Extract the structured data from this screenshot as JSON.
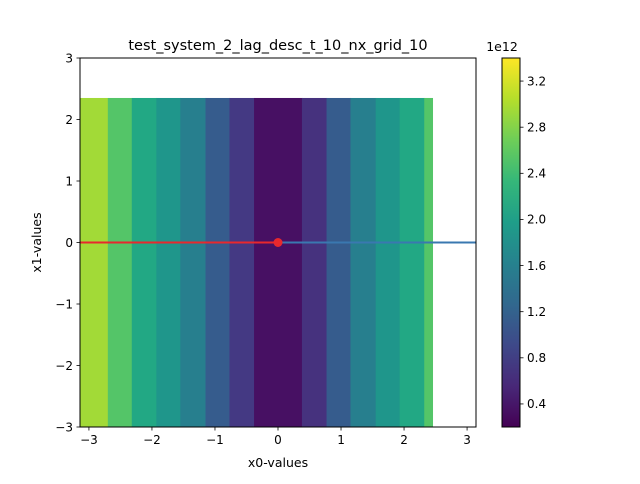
{
  "chart_data": {
    "type": "heatmap",
    "title": "test_system_2_lag_desc_t_10_nx_grid_10",
    "xlabel": "x0-values",
    "ylabel": "x1-values",
    "xlim": [
      -3.14159,
      3.14159
    ],
    "ylim": [
      -3,
      3
    ],
    "x_ticks": [
      {
        "value": -3,
        "label": "−3"
      },
      {
        "value": -2,
        "label": "−2"
      },
      {
        "value": -1,
        "label": "−1"
      },
      {
        "value": 0,
        "label": "0"
      },
      {
        "value": 1,
        "label": "1"
      },
      {
        "value": 2,
        "label": "2"
      },
      {
        "value": 3,
        "label": "3"
      }
    ],
    "y_ticks": [
      {
        "value": -3,
        "label": "−3"
      },
      {
        "value": -2,
        "label": "−2"
      },
      {
        "value": -1,
        "label": "−1"
      },
      {
        "value": 0,
        "label": "0"
      },
      {
        "value": 1,
        "label": "1"
      },
      {
        "value": 2,
        "label": "2"
      },
      {
        "value": 3,
        "label": "3"
      }
    ],
    "grid": false,
    "heatmap_y_range": [
      -3,
      2.35
    ],
    "bands": [
      {
        "x0": -3.14159,
        "x1": -2.7,
        "color": "#a2da37"
      },
      {
        "x0": -2.7,
        "x1": -2.32,
        "color": "#54c568"
      },
      {
        "x0": -2.32,
        "x1": -1.93,
        "color": "#22a884"
      },
      {
        "x0": -1.93,
        "x1": -1.55,
        "color": "#1f968b"
      },
      {
        "x0": -1.55,
        "x1": -1.15,
        "color": "#277f8e"
      },
      {
        "x0": -1.15,
        "x1": -0.77,
        "color": "#365c8d"
      },
      {
        "x0": -0.77,
        "x1": -0.38,
        "color": "#443983"
      },
      {
        "x0": -0.38,
        "x1": 0.38,
        "color": "#471063"
      },
      {
        "x0": 0.38,
        "x1": 0.77,
        "color": "#46327e"
      },
      {
        "x0": 0.77,
        "x1": 1.15,
        "color": "#365c8d"
      },
      {
        "x0": 1.15,
        "x1": 1.55,
        "color": "#277f8e"
      },
      {
        "x0": 1.55,
        "x1": 1.93,
        "color": "#1f968b"
      },
      {
        "x0": 1.93,
        "x1": 2.32,
        "color": "#22a884"
      },
      {
        "x0": 2.32,
        "x1": 2.45,
        "color": "#54c568"
      }
    ],
    "lines": [
      {
        "x": [
          0,
          3.14159
        ],
        "y": [
          0,
          0
        ],
        "color": "#3a78b0"
      },
      {
        "x": [
          -3.14159,
          0
        ],
        "y": [
          0,
          0
        ],
        "color": "#e8282d"
      }
    ],
    "marker": {
      "x": 0,
      "y": 0,
      "color": "#e8282d"
    },
    "colorbar": {
      "range": [
        0.2,
        3.4
      ],
      "offset_label": "1e12",
      "ticks": [
        {
          "value": 0.4,
          "label": "0.4"
        },
        {
          "value": 0.8,
          "label": "0.8"
        },
        {
          "value": 1.2,
          "label": "1.2"
        },
        {
          "value": 1.6,
          "label": "1.6"
        },
        {
          "value": 2.0,
          "label": "2.0"
        },
        {
          "value": 2.4,
          "label": "2.4"
        },
        {
          "value": 2.8,
          "label": "2.8"
        },
        {
          "value": 3.2,
          "label": "3.2"
        }
      ],
      "colormap": [
        "#440154",
        "#482878",
        "#3e4989",
        "#31688e",
        "#26828e",
        "#1f9e89",
        "#35b779",
        "#6ece58",
        "#b5de2b",
        "#fde725"
      ]
    }
  }
}
